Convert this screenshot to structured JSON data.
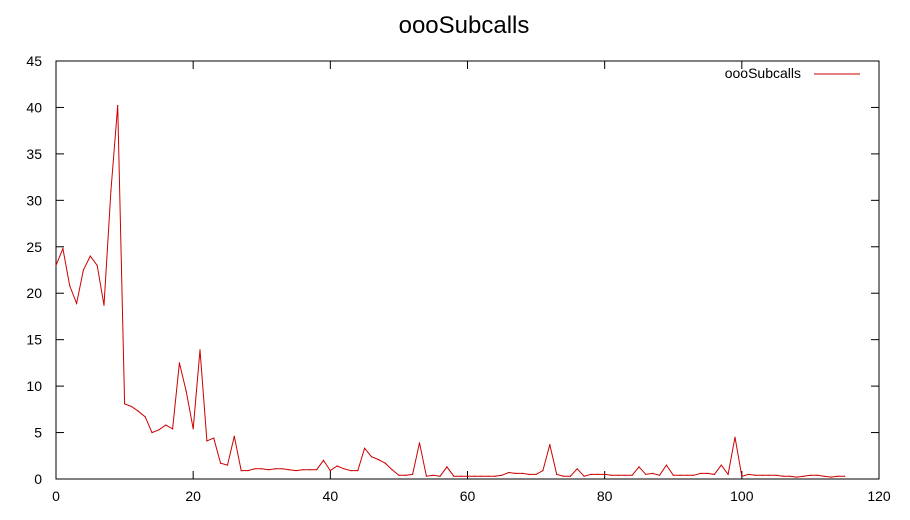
{
  "chart_data": {
    "type": "line",
    "title": "oooSubcalls",
    "xlabel": "",
    "ylabel": "",
    "xlim": [
      0,
      120
    ],
    "ylim": [
      0,
      45
    ],
    "xticks": [
      0,
      20,
      40,
      60,
      80,
      100,
      120
    ],
    "yticks": [
      0,
      5,
      10,
      15,
      20,
      25,
      30,
      35,
      40,
      45
    ],
    "grid": false,
    "legend_position": "top-right",
    "colors": {
      "series": "#cc0000",
      "axis": "#000000"
    },
    "series": [
      {
        "name": "oooSubcalls",
        "x": [
          0,
          1,
          2,
          3,
          4,
          5,
          6,
          7,
          8,
          9,
          10,
          11,
          12,
          13,
          14,
          15,
          16,
          17,
          18,
          19,
          20,
          21,
          22,
          23,
          24,
          25,
          26,
          27,
          28,
          29,
          30,
          31,
          32,
          33,
          34,
          35,
          36,
          37,
          38,
          39,
          40,
          41,
          42,
          43,
          44,
          45,
          46,
          47,
          48,
          49,
          50,
          51,
          52,
          53,
          54,
          55,
          56,
          57,
          58,
          59,
          60,
          61,
          62,
          63,
          64,
          65,
          66,
          67,
          68,
          69,
          70,
          71,
          72,
          73,
          74,
          75,
          76,
          77,
          78,
          79,
          80,
          81,
          82,
          83,
          84,
          85,
          86,
          87,
          88,
          89,
          90,
          91,
          92,
          93,
          94,
          95,
          96,
          97,
          98,
          99,
          100,
          101,
          102,
          103,
          104,
          105,
          106,
          107,
          108,
          109,
          110,
          111,
          112,
          113,
          114,
          115
        ],
        "values": [
          23,
          24.8,
          20.8,
          18.9,
          22.5,
          24,
          23,
          18.7,
          31,
          40.2,
          8.1,
          7.8,
          7.3,
          6.7,
          5,
          5.3,
          5.8,
          5.4,
          12.5,
          9.4,
          5.4,
          13.9,
          4.1,
          4.4,
          1.7,
          1.5,
          4.6,
          0.9,
          0.9,
          1.1,
          1.1,
          1,
          1.1,
          1.1,
          1,
          0.9,
          1,
          1,
          1,
          2,
          0.9,
          1.4,
          1.1,
          0.9,
          0.9,
          3.3,
          2.4,
          2.1,
          1.7,
          1,
          0.4,
          0.4,
          0.5,
          3.9,
          0.3,
          0.4,
          0.3,
          1.3,
          0.3,
          0.3,
          0.3,
          0.3,
          0.3,
          0.3,
          0.3,
          0.4,
          0.7,
          0.6,
          0.6,
          0.5,
          0.5,
          0.9,
          3.7,
          0.5,
          0.3,
          0.3,
          1.1,
          0.3,
          0.5,
          0.5,
          0.5,
          0.4,
          0.4,
          0.4,
          0.4,
          1.3,
          0.5,
          0.6,
          0.4,
          1.5,
          0.4,
          0.4,
          0.4,
          0.4,
          0.6,
          0.6,
          0.5,
          1.5,
          0.5,
          4.5,
          0.3,
          0.5,
          0.4,
          0.4,
          0.4,
          0.4,
          0.3,
          0.3,
          0.2,
          0.3,
          0.4,
          0.4,
          0.3,
          0.2,
          0.3,
          0.3
        ]
      }
    ]
  }
}
